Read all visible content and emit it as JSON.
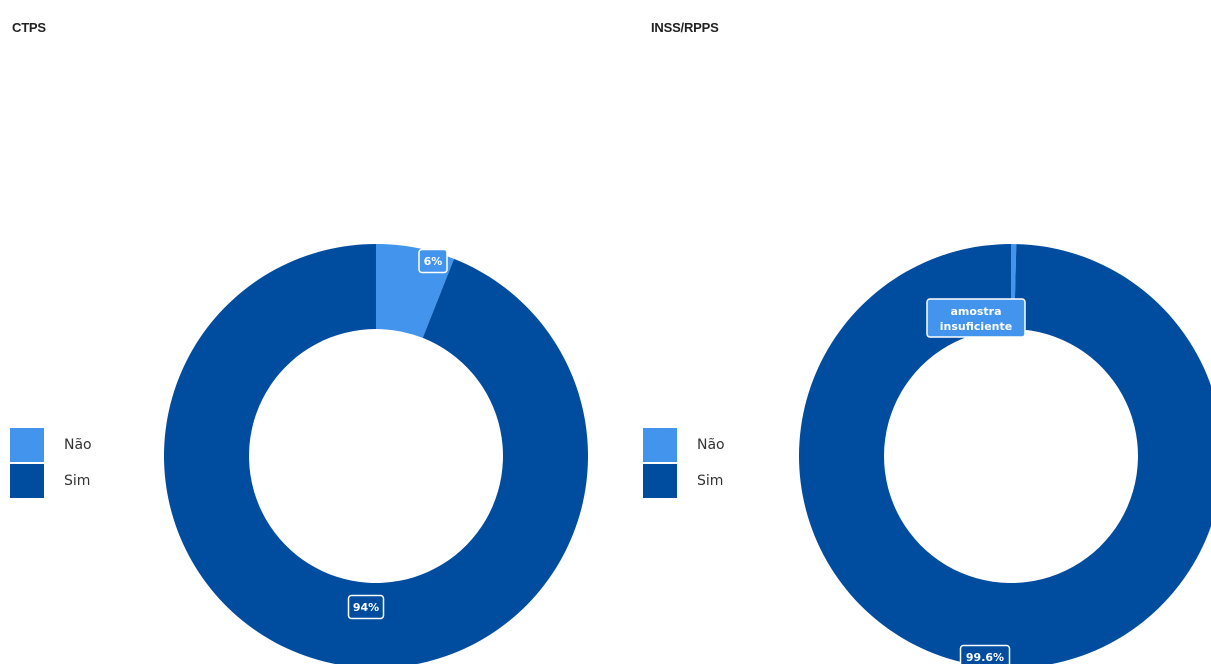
{
  "colors": {
    "nao": "#4394ec",
    "sim": "#004c9f"
  },
  "chart_data": [
    {
      "type": "pie",
      "style": "donut",
      "title": "CTPS",
      "legend_position": "left",
      "categories": [
        "Não",
        "Sim"
      ],
      "values": [
        6,
        94
      ],
      "labels": [
        "6%",
        "94%"
      ]
    },
    {
      "type": "pie",
      "style": "donut",
      "title": "INSS/RPPS",
      "legend_position": "left",
      "categories": [
        "Não",
        "Sim"
      ],
      "values": [
        0.4,
        99.6
      ],
      "labels": [
        "amostra insuficiente",
        "99.6%"
      ]
    }
  ]
}
